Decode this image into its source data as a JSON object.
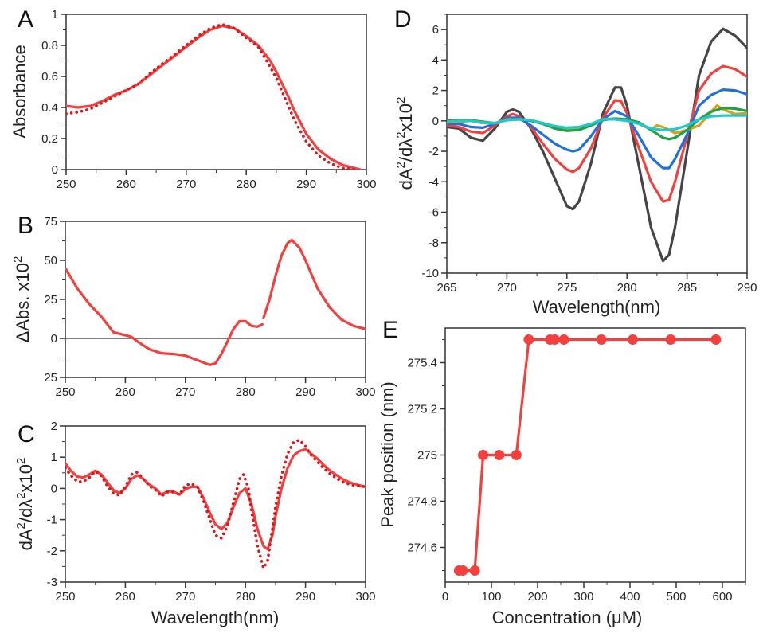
{
  "chart_data": [
    {
      "panel": "A",
      "type": "line",
      "xlabel": "",
      "ylabel": [
        {
          "t": "Absorbance"
        }
      ],
      "xlim": [
        250,
        300
      ],
      "ylim": [
        0,
        1
      ],
      "grid": false,
      "xticks": [
        250,
        260,
        270,
        280,
        290,
        300
      ],
      "xtick_labels": [
        "250",
        "260",
        "270",
        "280",
        "290",
        "300"
      ],
      "yticks": [
        0,
        0.2,
        0.4,
        0.6,
        0.8,
        1
      ],
      "ytick_labels": [
        "0",
        "0.2",
        "0.4",
        "0.6",
        "0.8",
        "1"
      ],
      "series": [
        {
          "style": "solid",
          "color": "#f2403f",
          "x": [
            250,
            252,
            254,
            256,
            258,
            260,
            262,
            264,
            266,
            268,
            270,
            272,
            274,
            276,
            278,
            280,
            282,
            284,
            285,
            286,
            287,
            288,
            290,
            292,
            294,
            296,
            298,
            299
          ],
          "y": [
            0.41,
            0.4,
            0.41,
            0.44,
            0.48,
            0.51,
            0.55,
            0.61,
            0.67,
            0.73,
            0.79,
            0.85,
            0.9,
            0.925,
            0.91,
            0.86,
            0.8,
            0.7,
            0.63,
            0.55,
            0.47,
            0.38,
            0.23,
            0.13,
            0.07,
            0.03,
            0.01,
            0
          ]
        },
        {
          "style": "dotted",
          "color": "#e0151a",
          "x": [
            250,
            252,
            254,
            256,
            258,
            260,
            262,
            264,
            266,
            268,
            270,
            272,
            274,
            276,
            278,
            280,
            282,
            284,
            285,
            286,
            288,
            290,
            292,
            294,
            296,
            298
          ],
          "y": [
            0.36,
            0.37,
            0.39,
            0.43,
            0.47,
            0.51,
            0.55,
            0.62,
            0.68,
            0.74,
            0.8,
            0.86,
            0.91,
            0.935,
            0.91,
            0.85,
            0.79,
            0.66,
            0.59,
            0.5,
            0.32,
            0.18,
            0.09,
            0.04,
            0.01,
            0
          ]
        }
      ]
    },
    {
      "panel": "B",
      "type": "line",
      "xlabel": "",
      "ylabel": [
        {
          "t": "ΔAbs. x10"
        },
        {
          "t": "2",
          "sup": true
        }
      ],
      "xlim": [
        250,
        300
      ],
      "ylim": [
        -25,
        75
      ],
      "grid": false,
      "zero_line": true,
      "xticks": [
        250,
        260,
        270,
        280,
        290,
        300
      ],
      "xtick_labels": [
        "250",
        "260",
        "270",
        "280",
        "290",
        "300"
      ],
      "yticks": [
        75,
        50,
        25,
        0,
        -25
      ],
      "ytick_labels": [
        "75",
        "50",
        "25",
        "0",
        "25"
      ],
      "series": [
        {
          "style": "solid",
          "color": "#f2403f",
          "x": [
            250,
            252,
            254,
            256,
            258,
            260,
            261,
            262,
            264,
            266,
            268,
            270,
            272,
            274,
            275,
            276,
            277,
            278,
            279,
            280,
            281,
            282,
            282.8
          ],
          "y": [
            45,
            32,
            22,
            14,
            4,
            2,
            1,
            -2,
            -7,
            -9.5,
            -10,
            -11,
            -14,
            -17,
            -16,
            -10,
            -2,
            6,
            11,
            11,
            8,
            7.5,
            9
          ]
        },
        {
          "style": "solid",
          "color": "#f2403f",
          "x": [
            283,
            284,
            285,
            286,
            287,
            287.7,
            289,
            290,
            292,
            294,
            296,
            298,
            300
          ],
          "y": [
            13,
            25,
            40,
            53,
            61,
            63,
            58,
            50,
            32,
            20,
            12,
            8,
            6
          ]
        }
      ]
    },
    {
      "panel": "C",
      "type": "line",
      "xlabel": "Wavelength(nm)",
      "ylabel": [
        {
          "t": "dA"
        },
        {
          "t": "2",
          "sup": true
        },
        {
          "t": "/dλ"
        },
        {
          "t": "2",
          "sup": true
        },
        {
          "t": "x10"
        },
        {
          "t": "2",
          "sup": true
        }
      ],
      "xlim": [
        250,
        300
      ],
      "ylim": [
        -3,
        2
      ],
      "grid": false,
      "xticks": [
        250,
        260,
        270,
        280,
        290,
        300
      ],
      "xtick_labels": [
        "250",
        "260",
        "270",
        "280",
        "290",
        "300"
      ],
      "yticks": [
        2,
        1,
        0,
        -1,
        -2,
        -3
      ],
      "ytick_labels": [
        "2",
        "1",
        "0",
        "-1",
        "-2",
        "-3"
      ],
      "series": [
        {
          "style": "solid",
          "color": "#f2403f",
          "x": [
            250,
            251,
            252,
            253,
            254,
            255,
            256,
            257,
            258,
            259,
            260,
            261,
            262,
            263,
            264,
            265,
            266,
            267,
            268,
            269,
            270,
            271,
            272,
            273,
            274,
            275,
            276,
            277,
            278,
            279,
            280,
            281,
            282,
            283,
            283.7,
            284.5,
            285,
            286,
            287,
            288,
            289,
            290,
            291,
            292,
            293,
            294,
            295,
            296,
            297,
            298,
            299,
            300
          ],
          "y": [
            0.8,
            0.55,
            0.38,
            0.35,
            0.45,
            0.57,
            0.45,
            0.2,
            -0.05,
            -0.15,
            0,
            0.3,
            0.42,
            0.3,
            0.12,
            0,
            -0.2,
            -0.1,
            -0.1,
            -0.2,
            -0.02,
            0.05,
            0.05,
            -0.3,
            -0.75,
            -1.15,
            -1.3,
            -1.1,
            -0.6,
            -0.15,
            0,
            -0.5,
            -1.3,
            -1.85,
            -1.95,
            -1.5,
            -0.9,
            0,
            0.65,
            1.05,
            1.2,
            1.25,
            1.1,
            0.95,
            0.75,
            0.58,
            0.45,
            0.32,
            0.22,
            0.15,
            0.1,
            0.05
          ]
        },
        {
          "style": "dotted",
          "color": "#e0151a",
          "x": [
            250,
            251,
            252,
            253,
            254,
            255,
            256,
            257,
            258,
            259,
            260,
            261,
            262,
            263,
            264,
            265,
            266,
            267,
            268,
            269,
            270,
            271,
            272,
            273,
            274,
            275,
            276,
            277,
            278,
            279,
            279.7,
            280.5,
            281,
            282,
            283,
            283.7,
            284.5,
            285,
            286,
            287,
            288,
            289,
            290,
            291,
            292,
            293,
            294,
            295,
            296,
            297,
            298,
            299,
            300
          ],
          "y": [
            0.65,
            0.4,
            0.22,
            0.22,
            0.35,
            0.55,
            0.4,
            0.08,
            -0.15,
            -0.22,
            0.05,
            0.45,
            0.52,
            0.3,
            0.08,
            -0.05,
            -0.25,
            -0.12,
            -0.12,
            -0.2,
            0.1,
            0.15,
            0.05,
            -0.4,
            -0.95,
            -1.5,
            -1.6,
            -1.2,
            -0.45,
            0.3,
            0.45,
            0,
            -0.7,
            -1.85,
            -2.55,
            -2.3,
            -1.3,
            -0.6,
            0.4,
            1.1,
            1.48,
            1.55,
            1.35,
            1.05,
            0.85,
            0.65,
            0.48,
            0.35,
            0.22,
            0.15,
            0.1,
            0.08,
            0.05
          ]
        }
      ]
    },
    {
      "panel": "D",
      "type": "line",
      "xlabel": "Wavelength(nm)",
      "ylabel": [
        {
          "t": "dA"
        },
        {
          "t": "2",
          "sup": true
        },
        {
          "t": "/dλ"
        },
        {
          "t": "2",
          "sup": true
        },
        {
          "t": "x10"
        },
        {
          "t": "2",
          "sup": true
        }
      ],
      "xlim": [
        265,
        290
      ],
      "ylim": [
        -10,
        7
      ],
      "grid": false,
      "xticks": [
        265,
        270,
        275,
        280,
        285,
        290
      ],
      "xtick_labels": [
        "265",
        "270",
        "275",
        "280",
        "285",
        "290"
      ],
      "yticks": [
        6,
        4,
        2,
        0,
        -2,
        -4,
        -6,
        -8,
        -10
      ],
      "ytick_labels": [
        "6",
        "4",
        "2",
        "0",
        "-2",
        "-4",
        "-6",
        "-8",
        "-10"
      ],
      "series": [
        {
          "style": "solid",
          "color": "#454545",
          "x": [
            265,
            266,
            267,
            268,
            269,
            270,
            270.5,
            271,
            272,
            273,
            274,
            275,
            275.5,
            276,
            277,
            278,
            279,
            279.5,
            280,
            281,
            282,
            283,
            283.5,
            284,
            285,
            286,
            287,
            288,
            289,
            290
          ],
          "y": [
            -0.4,
            -0.5,
            -1.1,
            -1.3,
            -0.5,
            0.6,
            0.75,
            0.6,
            -0.5,
            -2.0,
            -3.8,
            -5.6,
            -5.8,
            -5.3,
            -2.8,
            0.5,
            2.2,
            2.2,
            1.0,
            -3.0,
            -7.0,
            -9.2,
            -8.8,
            -7.0,
            -2.0,
            3.0,
            5.2,
            6.05,
            5.6,
            4.8
          ]
        },
        {
          "style": "solid",
          "color": "#f2403f",
          "x": [
            265,
            266,
            267,
            268,
            269,
            270,
            270.5,
            271,
            272,
            273,
            274,
            275,
            275.5,
            276,
            277,
            278,
            279,
            279.5,
            280,
            281,
            282,
            283,
            283.5,
            284,
            285,
            286,
            287,
            288,
            289,
            290
          ],
          "y": [
            -0.3,
            -0.4,
            -0.7,
            -0.8,
            -0.3,
            0.3,
            0.45,
            0.3,
            -0.4,
            -1.5,
            -2.5,
            -3.2,
            -3.35,
            -3.1,
            -1.8,
            0.2,
            1.35,
            1.3,
            0.5,
            -1.8,
            -4.0,
            -5.3,
            -5.2,
            -4.0,
            -1.0,
            2.0,
            3.1,
            3.6,
            3.4,
            2.9
          ]
        },
        {
          "style": "solid",
          "color": "#1f6fe0",
          "x": [
            265,
            266,
            267,
            268,
            269,
            270,
            271,
            272,
            273,
            274,
            275,
            275.5,
            276,
            277,
            278,
            279,
            280,
            281,
            282,
            283,
            283.5,
            284,
            285,
            286,
            287,
            288,
            289,
            290
          ],
          "y": [
            -0.2,
            -0.2,
            -0.4,
            -0.45,
            -0.2,
            0.2,
            0.2,
            -0.3,
            -0.9,
            -1.5,
            -1.9,
            -2.0,
            -1.9,
            -1.0,
            0.1,
            0.65,
            0.3,
            -1.0,
            -2.4,
            -3.1,
            -3.1,
            -2.5,
            -0.9,
            1.0,
            1.7,
            2.05,
            2.0,
            1.75
          ]
        },
        {
          "style": "solid",
          "color": "#d4a017",
          "x": [
            265,
            266,
            267,
            268,
            269,
            270,
            271,
            272,
            273,
            274,
            275,
            276,
            277,
            278,
            279,
            280,
            281,
            282,
            282.5,
            283,
            284,
            285,
            286,
            287,
            287.5,
            288,
            289,
            290
          ],
          "y": [
            -0.1,
            -0.05,
            0,
            -0.15,
            -0.15,
            0.1,
            0.1,
            0.05,
            -0.15,
            -0.4,
            -0.55,
            -0.5,
            -0.2,
            0.1,
            0.15,
            0.05,
            -0.2,
            -0.55,
            -0.3,
            -0.4,
            -0.8,
            -0.6,
            -0.3,
            0.6,
            1.0,
            0.75,
            0.45,
            0.5
          ]
        },
        {
          "style": "solid",
          "color": "#22a045",
          "x": [
            265,
            266,
            267,
            268,
            269,
            270,
            271,
            272,
            273,
            274,
            275,
            276,
            277,
            278,
            279,
            280,
            281,
            282,
            283,
            283.5,
            284,
            285,
            286,
            287,
            288,
            289,
            290
          ],
          "y": [
            0,
            0.05,
            0.05,
            -0.05,
            -0.15,
            0.05,
            0.1,
            0,
            -0.2,
            -0.5,
            -0.65,
            -0.6,
            -0.3,
            0.05,
            0.15,
            0.1,
            -0.1,
            -0.6,
            -1.1,
            -1.2,
            -1.1,
            -0.6,
            0.1,
            0.6,
            0.85,
            0.8,
            0.65
          ]
        },
        {
          "style": "solid",
          "color": "#20c8d0",
          "x": [
            265,
            266,
            267,
            268,
            269,
            270,
            271,
            272,
            273,
            274,
            275,
            276,
            277,
            278,
            279,
            280,
            281,
            282,
            283,
            284,
            285,
            286,
            287,
            288,
            289,
            290
          ],
          "y": [
            -0.05,
            0,
            0,
            -0.1,
            -0.15,
            0.05,
            0.1,
            0.05,
            -0.15,
            -0.35,
            -0.45,
            -0.4,
            -0.2,
            0.1,
            0.1,
            0,
            -0.2,
            -0.5,
            -0.6,
            -0.55,
            -0.3,
            0.1,
            0.3,
            0.35,
            0.35,
            0.35
          ]
        }
      ]
    },
    {
      "panel": "E",
      "type": "line+scatter",
      "xlabel": "Concentration (μM)",
      "ylabel": [
        {
          "t": "Peak position (nm)"
        }
      ],
      "xlim": [
        0,
        650
      ],
      "ylim": [
        274.45,
        275.55
      ],
      "grid": false,
      "xticks": [
        0,
        100,
        200,
        300,
        400,
        500,
        600
      ],
      "xtick_labels": [
        "0",
        "100",
        "200",
        "300",
        "400",
        "500",
        "600"
      ],
      "yticks": [
        274.6,
        274.8,
        275,
        275.2,
        275.4
      ],
      "ytick_labels": [
        "274.6",
        "274.8",
        "275",
        "275.2",
        "275.4"
      ],
      "series": [
        {
          "style": "solid",
          "color": "#f2403f",
          "markers": true,
          "x": [
            30,
            38,
            64,
            82,
            117,
            154,
            181,
            227,
            237,
            257,
            338,
            406,
            488,
            586
          ],
          "y": [
            274.5,
            274.5,
            274.5,
            275,
            275,
            275,
            275.5,
            275.5,
            275.5,
            275.5,
            275.5,
            275.5,
            275.5,
            275.5
          ]
        }
      ]
    }
  ]
}
